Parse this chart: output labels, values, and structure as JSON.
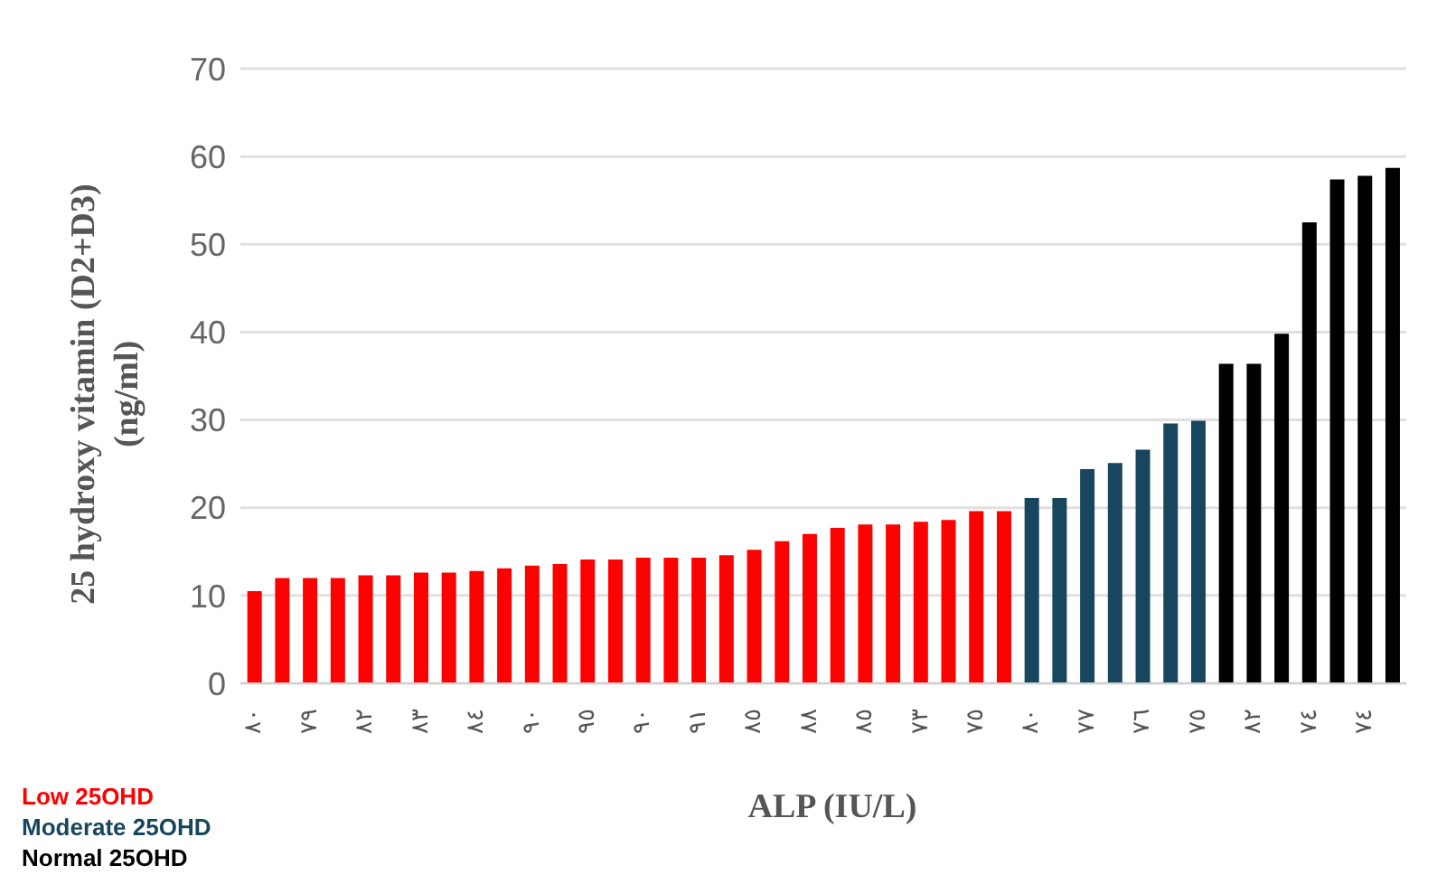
{
  "chart_data": {
    "type": "bar",
    "xlabel": "ALP (IU/L)",
    "ylabel": "25 hydroxy vitamin (D2+D3) (ng/ml)",
    "categories": [
      "٨٠",
      null,
      "٧٩",
      null,
      "٨٢",
      null,
      "٨٣",
      null,
      "٨٤",
      null,
      "٩٠",
      null,
      "٩٥",
      null,
      "٩٠",
      null,
      "٩١",
      null,
      "٨٥",
      null,
      "٨٨",
      null,
      "٨٥",
      null,
      "٧٣",
      null,
      "٧٥",
      null,
      "٨٠",
      null,
      "٧٧",
      null,
      "٧٦",
      null,
      "٧٥",
      null,
      "٨٢",
      null,
      "٧٤",
      null,
      "٧٤",
      null
    ],
    "series": [
      {
        "name": "Low 25OHD",
        "color": "#ff0000",
        "values": [
          10.5,
          12.0,
          12.0,
          12.0,
          12.3,
          12.3,
          12.6,
          12.6,
          12.8,
          13.1,
          13.4,
          13.6,
          14.1,
          14.1,
          14.3,
          14.3,
          14.3,
          14.6,
          15.2,
          16.2,
          17.0,
          17.7,
          18.1,
          18.1,
          18.4,
          18.6,
          19.6,
          19.6,
          null,
          null,
          null,
          null,
          null,
          null,
          null,
          null,
          null,
          null,
          null,
          null,
          null,
          null
        ]
      },
      {
        "name": "Moderate 25OHD",
        "color": "#17465e",
        "values": [
          null,
          null,
          null,
          null,
          null,
          null,
          null,
          null,
          null,
          null,
          null,
          null,
          null,
          null,
          null,
          null,
          null,
          null,
          null,
          null,
          null,
          null,
          null,
          null,
          null,
          null,
          null,
          null,
          21.1,
          21.1,
          24.4,
          25.1,
          26.6,
          29.6,
          29.9,
          null,
          null,
          null,
          null,
          null,
          null,
          null
        ]
      },
      {
        "name": "Normal 25OHD",
        "color": "#000000",
        "values": [
          null,
          null,
          null,
          null,
          null,
          null,
          null,
          null,
          null,
          null,
          null,
          null,
          null,
          null,
          null,
          null,
          null,
          null,
          null,
          null,
          null,
          null,
          null,
          null,
          null,
          null,
          null,
          null,
          null,
          null,
          null,
          null,
          null,
          null,
          null,
          36.4,
          36.4,
          39.8,
          52.5,
          57.4,
          57.8,
          58.7
        ]
      }
    ],
    "ylim": [
      0,
      70
    ],
    "yticks": [
      0,
      10,
      20,
      30,
      40,
      50,
      60,
      70
    ],
    "grid": "y",
    "legend": "bottom left"
  }
}
